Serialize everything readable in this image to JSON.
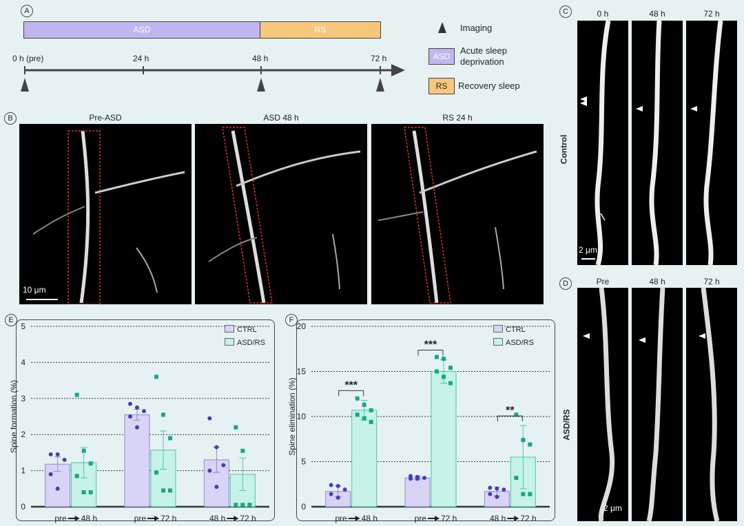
{
  "panels": {
    "A": "A",
    "B": "B",
    "C": "C",
    "D": "D",
    "E": "E",
    "F": "F"
  },
  "timeline": {
    "asd_bar": "ASD",
    "rs_bar": "RS",
    "ticks": [
      "0 h (pre)",
      "24 h",
      "48 h",
      "72 h"
    ],
    "legend": {
      "imaging": "Imaging",
      "asd_box": "ASD",
      "asd_text": "Acute sleep deprivation",
      "rs_box": "RS",
      "rs_text": "Recovery sleep"
    },
    "colors": {
      "asd": "#bfb6f0",
      "rs": "#f8c77e"
    }
  },
  "panelB": {
    "titles": [
      "Pre-ASD",
      "ASD 48 h",
      "RS 24 h"
    ],
    "scale": "10 μm"
  },
  "panelC": {
    "times": [
      "0 h",
      "48 h",
      "72 h"
    ],
    "row_label": "Control",
    "scale": "2 μm"
  },
  "panelD": {
    "times": [
      "Pre",
      "48 h",
      "72 h"
    ],
    "row_label": "ASD/RS",
    "scale": "2 μm"
  },
  "chart_data": [
    {
      "type": "bar",
      "panel": "E",
      "ylabel": "Spine formation (%)",
      "ylim": [
        0,
        5
      ],
      "yticks": [
        "0",
        "1",
        "2",
        "3",
        "4",
        "5"
      ],
      "categories": [
        "pre→48 h",
        "pre→72 h",
        "48 h→72 h"
      ],
      "category_parts": [
        [
          "pre",
          "48 h"
        ],
        [
          "pre",
          "72 h"
        ],
        [
          "48 h",
          "72 h"
        ]
      ],
      "series": [
        {
          "name": "CTRL",
          "values": [
            1.18,
            2.55,
            1.3
          ],
          "err": [
            0.2,
            0.15,
            0.35
          ],
          "points": [
            [
              1.45,
              1.45,
              1.3,
              0.9,
              0.5
            ],
            [
              2.85,
              2.75,
              2.65,
              2.5,
              2.2
            ],
            [
              2.45,
              1.65,
              1.15,
              1.0,
              0.55
            ]
          ]
        },
        {
          "name": "ASD/RS",
          "values": [
            1.22,
            1.57,
            0.9
          ],
          "err": [
            0.42,
            0.53,
            0.45
          ],
          "points": [
            [
              3.1,
              1.55,
              1.2,
              0.85,
              0.4,
              0.4
            ],
            [
              3.6,
              2.55,
              1.9,
              0.95,
              0.45,
              0.45
            ],
            [
              2.2,
              1.55,
              0.05,
              0.05,
              0.05,
              0.05
            ]
          ]
        }
      ],
      "significance": [],
      "legend": "top-right",
      "grid": true
    },
    {
      "type": "bar",
      "panel": "F",
      "ylabel": "Spine elimination (%)",
      "ylim": [
        0,
        20
      ],
      "yticks": [
        "0",
        "5",
        "10",
        "15",
        "20"
      ],
      "categories": [
        "pre→48 h",
        "pre→72 h",
        "48 h→72 h"
      ],
      "category_parts": [
        [
          "pre",
          "48 h"
        ],
        [
          "pre",
          "72 h"
        ],
        [
          "48 h",
          "72 h"
        ]
      ],
      "series": [
        {
          "name": "CTRL",
          "values": [
            1.7,
            3.2,
            1.7
          ],
          "err": [
            0.6,
            0.2,
            0.5
          ],
          "points": [
            [
              2.4,
              2.3,
              1.9,
              1.4,
              1.0
            ],
            [
              3.4,
              3.3,
              3.2,
              3.1,
              3.1
            ],
            [
              2.1,
              2.0,
              1.9,
              1.4,
              1.1
            ]
          ]
        },
        {
          "name": "ASD/RS",
          "values": [
            10.7,
            15.0,
            5.5
          ],
          "err": [
            1.1,
            1.3,
            3.5
          ],
          "points": [
            [
              12.0,
              11.3,
              10.7,
              10.2,
              9.8,
              9.4
            ],
            [
              16.6,
              16.4,
              15.4,
              15.0,
              14.4,
              13.7
            ],
            [
              10.2,
              7.4,
              6.9,
              3.2,
              1.4,
              1.4
            ]
          ]
        }
      ],
      "significance": [
        "***",
        "***",
        "**"
      ],
      "legend": "top-right",
      "grid": true
    }
  ]
}
